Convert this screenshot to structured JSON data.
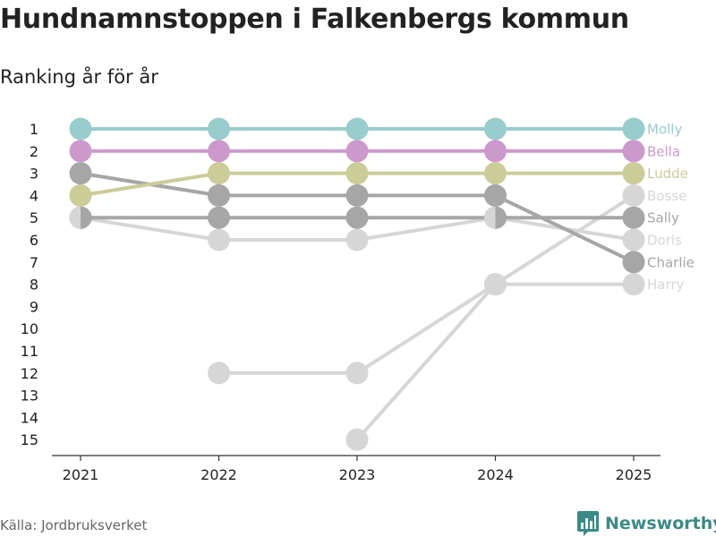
{
  "title": "Hundnamnstoppen i Falkenbergs kommun",
  "subtitle": "Ranking år för år",
  "source": "Källa: Jordbruksverket",
  "brand": {
    "name": "Newsworthy",
    "icon": "bar-chart-logo-icon",
    "color": "#3a8a86"
  },
  "chart_data": {
    "type": "line",
    "x": [
      "2021",
      "2022",
      "2023",
      "2024",
      "2025"
    ],
    "y_ticks": [
      1,
      2,
      3,
      4,
      5,
      6,
      7,
      8,
      9,
      10,
      11,
      12,
      13,
      14,
      15
    ],
    "y_reversed": true,
    "ylim": [
      1,
      15
    ],
    "grid": false,
    "series": [
      {
        "name": "Harry",
        "color": "#d6d6d6",
        "values": [
          null,
          12,
          12,
          8,
          8
        ]
      },
      {
        "name": "Bosse",
        "color": "#d6d6d6",
        "values": [
          null,
          null,
          15,
          8,
          4
        ]
      },
      {
        "name": "Doris",
        "color": "#d6d6d6",
        "values": [
          5,
          6,
          6,
          5,
          6
        ]
      },
      {
        "name": "Charlie",
        "color": "#a6a6a6",
        "values": [
          3,
          4,
          4,
          4,
          7
        ]
      },
      {
        "name": "Sally",
        "color": "#a6a6a6",
        "values": [
          5,
          5,
          5,
          5,
          5
        ]
      },
      {
        "name": "Ludde",
        "color": "#cccc99",
        "values": [
          4,
          3,
          3,
          3,
          3
        ]
      },
      {
        "name": "Bella",
        "color": "#cc99cc",
        "values": [
          2,
          2,
          2,
          2,
          2
        ]
      },
      {
        "name": "Molly",
        "color": "#99cccc",
        "values": [
          1,
          1,
          1,
          1,
          1
        ]
      }
    ]
  }
}
